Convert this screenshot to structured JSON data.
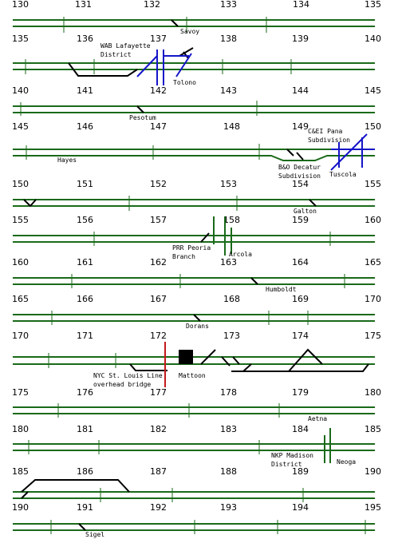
{
  "colors": {
    "mainline": "#1a6a1a",
    "siding": "#000000",
    "blue_crossing": "#1515c8",
    "red_overpass": "#c41a1a",
    "station_building": "#000000",
    "background": "#ffffff"
  },
  "rows": [
    {
      "miles": [
        "130",
        "131",
        "132",
        "133",
        "134",
        "135"
      ],
      "stations": [
        "Savoy"
      ]
    },
    {
      "miles": [
        "135",
        "136",
        "137",
        "138",
        "139",
        "140"
      ],
      "stations": [
        "WAB Lafayette",
        "District",
        "Tolono"
      ]
    },
    {
      "miles": [
        "140",
        "141",
        "142",
        "143",
        "144",
        "145"
      ],
      "stations": [
        "Pesotum"
      ]
    },
    {
      "miles": [
        "145",
        "146",
        "147",
        "148",
        "149",
        "150"
      ],
      "stations": [
        "Hayes",
        "C&EI Pana",
        "Subdivision",
        "B&O Decatur",
        "Subdivision",
        "Tuscola"
      ]
    },
    {
      "miles": [
        "150",
        "151",
        "152",
        "153",
        "154",
        "155"
      ],
      "stations": [
        "Galton"
      ]
    },
    {
      "miles": [
        "155",
        "156",
        "157",
        "158",
        "159",
        "160"
      ],
      "stations": [
        "PRR Peoria",
        "Branch",
        "Arcola"
      ]
    },
    {
      "miles": [
        "160",
        "161",
        "162",
        "163",
        "164",
        "165"
      ],
      "stations": [
        "Humboldt"
      ]
    },
    {
      "miles": [
        "165",
        "166",
        "167",
        "168",
        "169",
        "170"
      ],
      "stations": [
        "Dorans"
      ]
    },
    {
      "miles": [
        "170",
        "171",
        "172",
        "173",
        "174",
        "175"
      ],
      "stations": [
        "NYC St. Louis Line",
        "overhead bridge",
        "Mattoon"
      ]
    },
    {
      "miles": [
        "175",
        "176",
        "177",
        "178",
        "179",
        "180"
      ],
      "stations": [
        "Aetna"
      ]
    },
    {
      "miles": [
        "180",
        "181",
        "182",
        "183",
        "184",
        "185"
      ],
      "stations": [
        "NKP Madison",
        "District",
        "Neoga"
      ]
    },
    {
      "miles": [
        "185",
        "186",
        "187",
        "188",
        "189",
        "190"
      ],
      "stations": [
        "Sigel"
      ]
    },
    {
      "miles": [
        "190",
        "191",
        "192",
        "193",
        "194",
        "195"
      ],
      "stations": []
    }
  ]
}
